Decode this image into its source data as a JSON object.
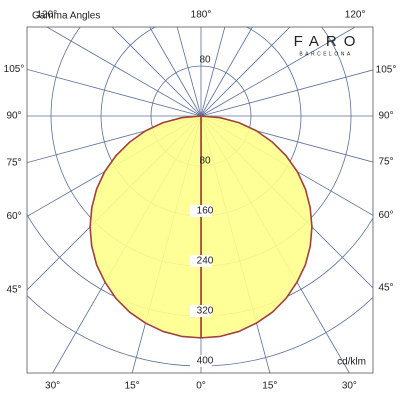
{
  "chart_data": {
    "type": "polar",
    "title": "Gamma Angles",
    "unit_label": "cd/klm",
    "logo": {
      "name": "FARO",
      "subtitle": "BARCELONA"
    },
    "angles": [
      0,
      5,
      10,
      15,
      20,
      25,
      30,
      35,
      40,
      45,
      50,
      55,
      60,
      65,
      70,
      75,
      80,
      85,
      90
    ],
    "values": [
      355,
      354,
      350,
      343,
      334,
      322,
      307,
      291,
      272,
      251,
      228,
      204,
      178,
      150,
      121,
      92,
      62,
      31,
      0
    ],
    "color": "#a0413c",
    "fill": "#ffff8c",
    "rlim": [
      0,
      400
    ],
    "rticks": [
      80,
      160,
      240,
      320,
      400
    ],
    "angle_ticks": [
      {
        "value": -120,
        "label": "120°"
      },
      {
        "value": -105,
        "label": "105°"
      },
      {
        "value": -90,
        "label": "90°"
      },
      {
        "value": -75,
        "label": "75°"
      },
      {
        "value": -60,
        "label": "60°"
      },
      {
        "value": -45,
        "label": "45°"
      },
      {
        "value": -30,
        "label": "30°"
      },
      {
        "value": -15,
        "label": "15°"
      },
      {
        "value": 0,
        "label": "0°"
      },
      {
        "value": 15,
        "label": "15°"
      },
      {
        "value": 30,
        "label": "30°"
      },
      {
        "value": 45,
        "label": "45°"
      },
      {
        "value": 60,
        "label": "60°"
      },
      {
        "value": 75,
        "label": "75°"
      },
      {
        "value": 90,
        "label": "90°"
      },
      {
        "value": 105,
        "label": "105°"
      },
      {
        "value": 120,
        "label": "120°"
      },
      {
        "value": 180,
        "label": "180°"
      }
    ],
    "grid": true
  }
}
